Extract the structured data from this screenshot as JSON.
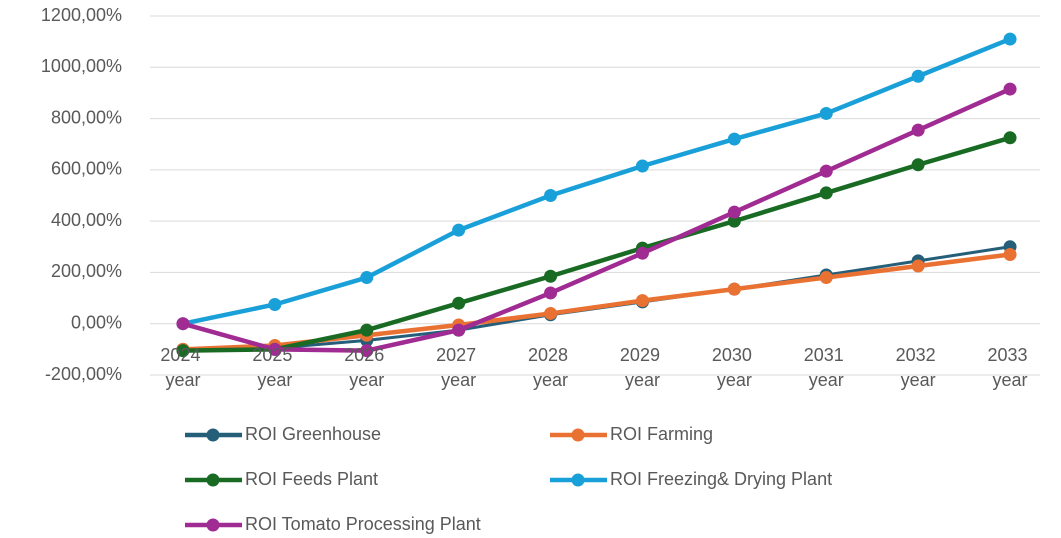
{
  "chart_data": {
    "type": "line",
    "categories": [
      "2024 year",
      "2025 year",
      "2026 year",
      "2027 year",
      "2028 year",
      "2029 year",
      "2030 year",
      "2031 year",
      "2032 year",
      "2033 year"
    ],
    "series": [
      {
        "name": "ROI Greenhouse",
        "color": "#255e79",
        "values": [
          -100,
          -95,
          -65,
          -25,
          35,
          85,
          135,
          190,
          245,
          300
        ]
      },
      {
        "name": "ROI Farming",
        "color": "#e97132",
        "values": [
          -100,
          -85,
          -45,
          -5,
          40,
          90,
          135,
          180,
          225,
          270
        ]
      },
      {
        "name": "ROI Feeds Plant",
        "color": "#196b24",
        "values": [
          -105,
          -100,
          -25,
          80,
          185,
          295,
          400,
          510,
          620,
          725
        ]
      },
      {
        "name": "ROI Freezing& Drying Plant",
        "color": "#1aa0d8",
        "values": [
          0,
          75,
          180,
          365,
          500,
          615,
          720,
          820,
          965,
          1110
        ]
      },
      {
        "name": "ROI Tomato Processing Plant",
        "color": "#a02b93",
        "values": [
          0,
          -100,
          -105,
          -25,
          120,
          275,
          435,
          595,
          755,
          915
        ]
      }
    ],
    "ylim": [
      -200,
      1200
    ],
    "yticks": [
      {
        "value": -200,
        "label": "-200,00%"
      },
      {
        "value": 0,
        "label": "0,00%"
      },
      {
        "value": 200,
        "label": "200,00%"
      },
      {
        "value": 400,
        "label": "400,00%"
      },
      {
        "value": 600,
        "label": "600,00%"
      },
      {
        "value": 800,
        "label": "800,00%"
      },
      {
        "value": 1000,
        "label": "1000,00%"
      },
      {
        "value": 1200,
        "label": "1200,00%"
      }
    ],
    "grid": true
  }
}
